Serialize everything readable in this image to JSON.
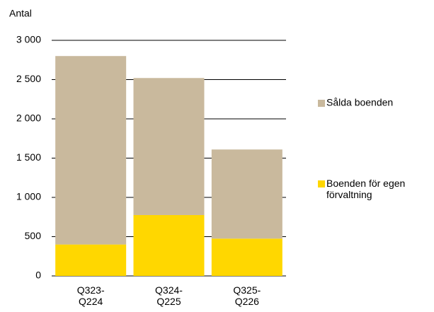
{
  "chart_data": {
    "type": "stacked_bar",
    "y_label": "Antal",
    "categories": [
      "Q323-\nQ224",
      "Q324-\nQ225",
      "Q325-\nQ226"
    ],
    "series": [
      {
        "name": "Boenden för egen\nförvaltning",
        "color": "#ffd700",
        "values": [
          400,
          775,
          475
        ]
      },
      {
        "name": "Sålda boenden",
        "color": "#c9b99d",
        "values": [
          2400,
          1745,
          1135
        ]
      }
    ],
    "ylim": [
      0,
      3000
    ],
    "yticks": [
      0,
      500,
      {
        "value": 1000,
        "label": "1 000"
      },
      {
        "value": 1500,
        "label": "1 500"
      },
      {
        "value": 2000,
        "label": "2 000"
      },
      {
        "value": 2500,
        "label": "2 500"
      },
      {
        "value": 3000,
        "label": "3 000"
      }
    ],
    "grid": true
  }
}
